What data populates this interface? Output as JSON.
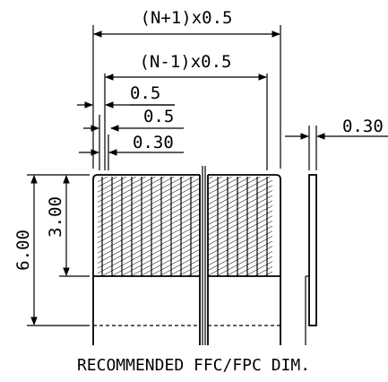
{
  "dimensions": {
    "total_width": "(N+1)x0.5",
    "contact_span": "(N-1)x0.5",
    "pitch": "0.5",
    "contact_pitch": "0.5",
    "contact_width": "0.30",
    "thickness": "0.30",
    "total_length": "6.00",
    "contact_length": "3.00"
  },
  "caption": "RECOMMENDED FFC/FPC DIM."
}
